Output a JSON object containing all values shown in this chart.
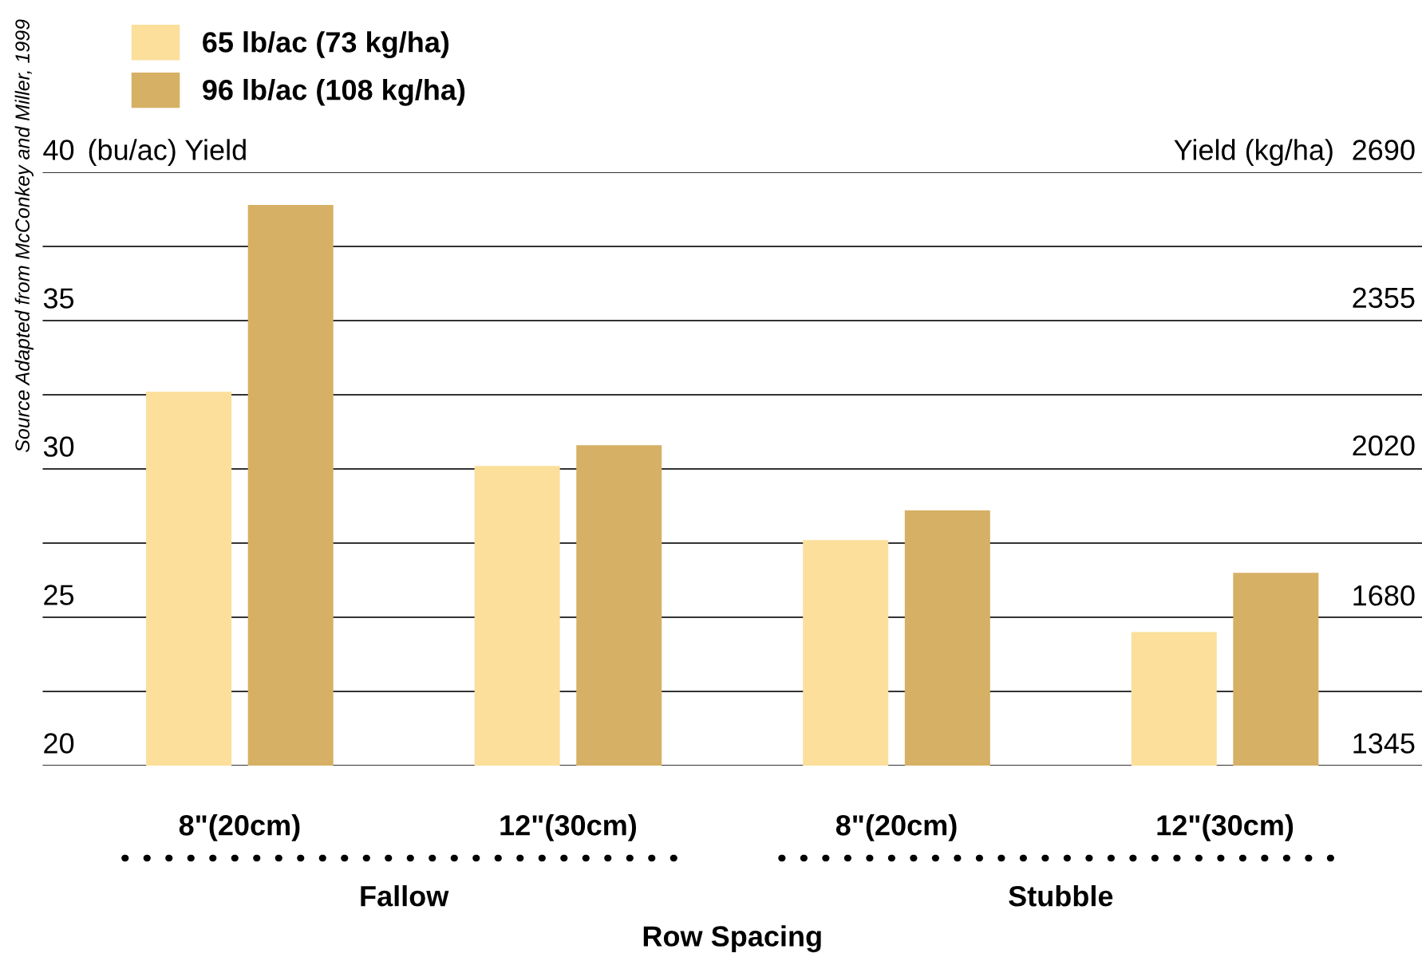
{
  "chart_data": {
    "type": "bar",
    "xlabel": "Row Spacing",
    "ylabel": "(bu/ac) Yield",
    "y2label": "Yield (kg/ha)",
    "categories": [
      "8\"(20cm)",
      "12\"(30cm)",
      "8\"(20cm)",
      "12\"(30cm)"
    ],
    "series": [
      {
        "name": "65 lb/ac (73 kg/ha)",
        "color": "#fbdf9b",
        "values": [
          32.6,
          30.1,
          27.6,
          24.5
        ]
      },
      {
        "name": "96 lb/ac (108 kg/ha)",
        "color": "#d6b064",
        "values": [
          38.9,
          30.8,
          28.6,
          26.5
        ]
      }
    ],
    "ylim": [
      20,
      40
    ],
    "yticks": [
      20,
      {
        "value": 22.5,
        "label": null
      },
      25,
      {
        "value": 27.5,
        "label": null
      },
      30,
      {
        "value": 32.5,
        "label": null
      },
      35,
      {
        "value": 37.5,
        "label": null
      },
      40
    ],
    "y2lim": [
      1345,
      2690
    ],
    "y2ticks": [
      1345,
      1680,
      2020,
      2355,
      2690
    ],
    "grid": "y",
    "legend": "top left",
    "annotations": [
      "Fallow",
      "Stubble",
      "Source Adapted from McConkey and Miller, 1999"
    ]
  }
}
